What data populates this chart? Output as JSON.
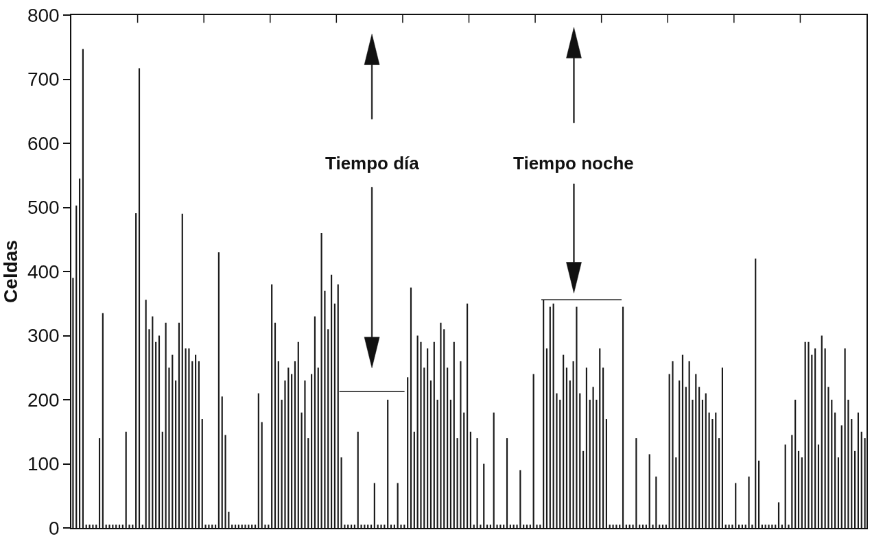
{
  "chart_data": {
    "type": "bar",
    "ylabel": "Celdas",
    "ylim": [
      0,
      800
    ],
    "yticks": [
      0,
      100,
      200,
      300,
      400,
      500,
      600,
      700,
      800
    ],
    "tick_labels": "y",
    "categories": [
      null,
      null,
      null,
      null,
      null,
      null,
      null,
      null,
      null,
      null,
      null,
      null,
      null,
      null,
      null,
      null,
      null,
      null,
      null,
      null,
      null,
      null,
      null,
      null,
      null,
      null,
      null,
      null,
      null,
      null,
      null,
      null,
      null,
      null,
      null,
      null,
      null,
      null,
      null,
      null,
      null,
      null,
      null,
      null,
      null,
      null,
      null,
      null,
      null,
      null,
      null,
      null,
      null,
      null,
      null,
      null,
      null,
      null,
      null,
      null,
      null,
      null,
      null,
      null,
      null,
      null,
      null,
      null,
      null,
      null,
      null,
      null,
      null,
      null,
      null,
      null,
      null,
      null,
      null,
      null,
      null,
      null,
      null,
      null,
      null,
      null,
      null,
      null,
      null,
      null,
      null,
      null,
      null,
      null,
      null,
      null,
      null,
      null,
      null,
      null,
      null,
      null,
      null,
      null,
      null,
      null,
      null,
      null,
      null,
      null,
      null,
      null,
      null,
      null,
      null,
      null,
      null,
      null,
      null,
      null,
      null,
      null,
      null,
      null,
      null,
      null,
      null,
      null,
      null,
      null,
      null,
      null,
      null,
      null,
      null,
      null,
      null,
      null,
      null,
      null,
      null,
      null,
      null,
      null,
      null,
      null,
      null,
      null,
      null,
      null,
      null,
      null,
      null,
      null,
      null,
      null,
      null,
      null,
      null,
      null,
      null,
      null,
      null,
      null,
      null,
      null,
      null,
      null,
      null,
      null,
      null,
      null,
      null,
      null,
      null,
      null,
      null,
      null,
      null,
      null,
      null,
      null,
      null,
      null,
      null,
      null,
      null,
      null,
      null,
      null,
      null,
      null,
      null,
      null,
      null,
      null,
      null,
      null,
      null,
      null,
      null,
      null,
      null,
      null,
      null,
      null,
      null,
      null,
      null,
      null,
      null,
      null,
      null,
      null,
      null,
      null,
      null,
      null,
      null,
      null,
      null,
      null,
      null,
      null,
      null,
      null,
      null,
      null,
      null,
      null,
      null,
      null,
      null,
      null,
      null,
      null,
      null,
      null,
      null,
      null
    ],
    "series": [
      {
        "color": "#1a1a1a",
        "values": [
          390,
          503,
          545,
          747,
          5,
          5,
          5,
          5,
          140,
          335,
          5,
          5,
          5,
          5,
          5,
          5,
          150,
          5,
          5,
          491,
          717,
          5,
          356,
          310,
          330,
          290,
          300,
          150,
          320,
          250,
          270,
          230,
          320,
          490,
          280,
          280,
          260,
          270,
          260,
          170,
          5,
          5,
          5,
          5,
          430,
          205,
          145,
          25,
          5,
          5,
          5,
          5,
          5,
          5,
          5,
          5,
          210,
          165,
          5,
          5,
          380,
          320,
          260,
          200,
          230,
          250,
          240,
          260,
          290,
          180,
          230,
          140,
          240,
          330,
          250,
          460,
          370,
          310,
          395,
          350,
          380,
          110,
          5,
          5,
          5,
          5,
          150,
          5,
          5,
          5,
          5,
          70,
          5,
          5,
          5,
          200,
          5,
          5,
          70,
          5,
          5,
          235,
          375,
          150,
          300,
          290,
          250,
          280,
          230,
          290,
          200,
          320,
          310,
          250,
          200,
          290,
          140,
          260,
          180,
          350,
          150,
          5,
          140,
          5,
          100,
          5,
          5,
          180,
          5,
          5,
          5,
          140,
          5,
          5,
          5,
          90,
          5,
          5,
          5,
          240,
          5,
          5,
          355,
          280,
          345,
          350,
          210,
          200,
          270,
          250,
          230,
          260,
          345,
          210,
          120,
          250,
          200,
          220,
          200,
          280,
          250,
          170,
          5,
          5,
          5,
          5,
          345,
          5,
          5,
          5,
          140,
          5,
          5,
          5,
          115,
          5,
          80,
          5,
          5,
          5,
          240,
          260,
          110,
          230,
          270,
          220,
          260,
          200,
          240,
          220,
          200,
          210,
          180,
          170,
          180,
          140,
          250,
          5,
          5,
          5,
          70,
          5,
          5,
          5,
          80,
          5,
          420,
          105,
          5,
          5,
          5,
          5,
          5,
          40,
          5,
          130,
          5,
          145,
          200,
          120,
          110,
          290,
          290,
          270,
          280,
          130,
          300,
          280,
          220,
          200,
          180,
          110,
          160,
          280,
          200,
          170,
          120,
          180,
          150,
          140
        ]
      }
    ],
    "annotations": [
      "Tiempo día",
      "Tiempo noche"
    ]
  }
}
